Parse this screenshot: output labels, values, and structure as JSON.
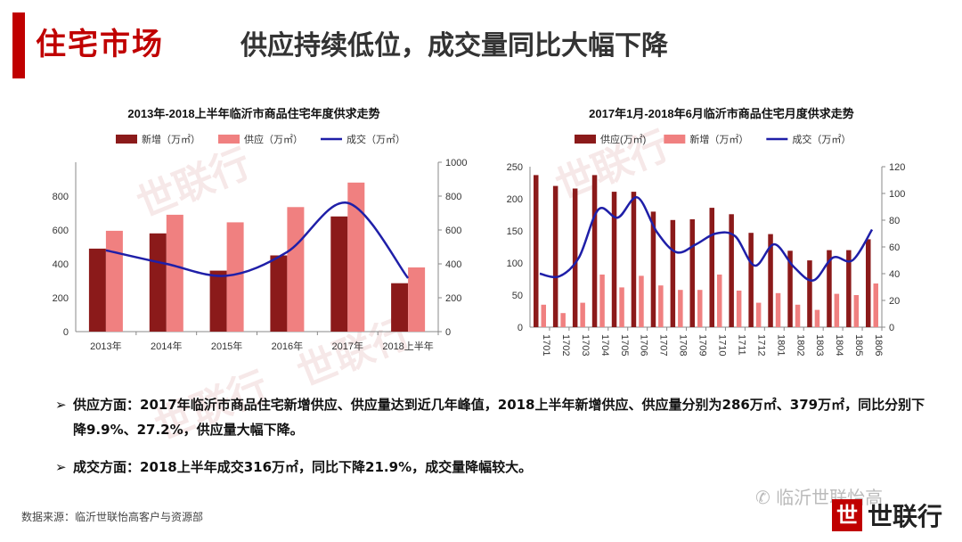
{
  "header": {
    "section_title": "住宅市场",
    "headline": "供应持续低位，成交量同比大幅下降"
  },
  "watermark": {
    "text": "世联行"
  },
  "chart_data": [
    {
      "type": "bar",
      "title": "2013年-2018上半年临沂市商品住宅年度供求走势",
      "categories": [
        "2013年",
        "2014年",
        "2015年",
        "2016年",
        "2017年",
        "2018上半年"
      ],
      "series": [
        {
          "name": "新增（万㎡）",
          "type": "bar",
          "axis": "left",
          "color": "#8b1a1a",
          "values": [
            490,
            580,
            360,
            450,
            680,
            286
          ]
        },
        {
          "name": "供应（万㎡）",
          "type": "bar",
          "axis": "left",
          "color": "#f08080",
          "values": [
            595,
            690,
            645,
            735,
            880,
            379
          ]
        },
        {
          "name": "成交（万㎡）",
          "type": "line",
          "axis": "right",
          "color": "#1f1fa8",
          "values": [
            480,
            400,
            330,
            470,
            760,
            316
          ]
        }
      ],
      "ylim": [
        0,
        1000
      ],
      "yticks": [
        0,
        200,
        400,
        600,
        800
      ],
      "y2lim": [
        0,
        1000
      ],
      "y2ticks": [
        0,
        200,
        400,
        600,
        800,
        1000
      ],
      "legend": "top"
    },
    {
      "type": "bar",
      "title": "2017年1月-2018年6月临沂市商品住宅月度供求走势",
      "categories": [
        "1701",
        "1702",
        "1703",
        "1704",
        "1705",
        "1706",
        "1707",
        "1708",
        "1709",
        "1710",
        "1711",
        "1712",
        "1801",
        "1802",
        "1803",
        "1804",
        "1805",
        "1806"
      ],
      "series": [
        {
          "name": "供应(万㎡)",
          "type": "bar",
          "axis": "left",
          "color": "#8b1a1a",
          "values": [
            237,
            220,
            216,
            237,
            211,
            211,
            180,
            167,
            168,
            186,
            176,
            147,
            145,
            119,
            104,
            120,
            120,
            137
          ]
        },
        {
          "name": "新增（万㎡）",
          "type": "bar",
          "axis": "left",
          "color": "#f08080",
          "values": [
            35,
            22,
            38,
            82,
            62,
            80,
            65,
            58,
            58,
            82,
            57,
            38,
            53,
            35,
            27,
            52,
            50,
            68
          ]
        },
        {
          "name": "成交（万㎡）",
          "type": "line",
          "axis": "right",
          "color": "#1f1fa8",
          "values": [
            40,
            38,
            52,
            88,
            82,
            97,
            71,
            56,
            62,
            70,
            68,
            46,
            62,
            45,
            35,
            52,
            50,
            73
          ]
        }
      ],
      "ylim": [
        0,
        250
      ],
      "yticks": [
        0,
        50,
        100,
        150,
        200,
        250
      ],
      "y2lim": [
        0,
        120
      ],
      "y2ticks": [
        0,
        20,
        40,
        60,
        80,
        100,
        120
      ],
      "legend": "top"
    }
  ],
  "notes": [
    {
      "marker": "➢",
      "text": "供应方面：2017年临沂市商品住宅新增供应、供应量达到近几年峰值，2018上半年新增供应、供应量分别为286万㎡、379万㎡，同比分别下降9.9%、27.2%，供应量大幅下降。"
    },
    {
      "marker": "➢",
      "text": "成交方面：2018上半年成交316万㎡，同比下降21.9%，成交量降幅较大。"
    }
  ],
  "footer": {
    "source": "数据来源：临沂世联怡高客户与资源部",
    "wechat": "临沂世联怡高",
    "brand_mark": "世",
    "brand_name": "世联行"
  }
}
